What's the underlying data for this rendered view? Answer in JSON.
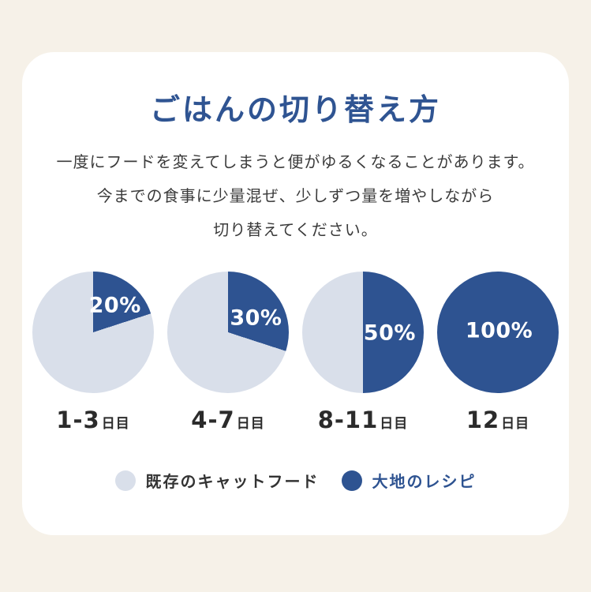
{
  "page": {
    "background_color": "#F6F1E8",
    "card_color": "#FFFFFF"
  },
  "header": {
    "title": "ごはんの切り替え方",
    "title_color": "#2F5492"
  },
  "description": {
    "lines": [
      "一度にフードを変えてしまうと便がゆるくなることがあります。",
      "今までの食事に少量混ぜ、少しずつ量を増やしながら",
      "切り替えてください。"
    ]
  },
  "chart_data": {
    "type": "pie",
    "title": "ごはんの切り替え方",
    "subtitle": "一度にフードを変えてしまうと便がゆるくなることがあります。今までの食事に少量混ぜ、少しずつ量を増やしながら切り替えてください。",
    "colors": {
      "new_food": "#2E5391",
      "existing_food": "#D9DFEA",
      "value_label": "#FFFFFF"
    },
    "pies": [
      {
        "day_range": "1-3",
        "day_suffix": "日目",
        "value_label": "20%",
        "new_food_pct": 20,
        "existing_food_pct": 80
      },
      {
        "day_range": "4-7",
        "day_suffix": "日目",
        "value_label": "30%",
        "new_food_pct": 30,
        "existing_food_pct": 70
      },
      {
        "day_range": "8-11",
        "day_suffix": "日目",
        "value_label": "50%",
        "new_food_pct": 50,
        "existing_food_pct": 50
      },
      {
        "day_range": "12",
        "day_suffix": "日目",
        "value_label": "100%",
        "new_food_pct": 100,
        "existing_food_pct": 0
      }
    ],
    "legend_position": "bottom",
    "legend": [
      {
        "label": "既存のキャットフード",
        "color": "#D9DFEA",
        "text_color": "#333333"
      },
      {
        "label": "大地のレシピ",
        "color": "#2E5391",
        "text_color": "#2E5391"
      }
    ]
  }
}
